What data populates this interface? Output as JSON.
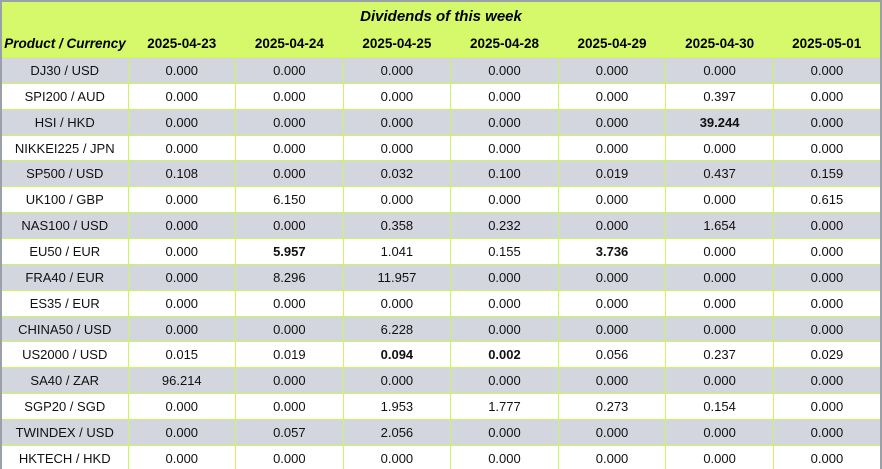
{
  "chart_data": {
    "type": "table",
    "title": "Dividends of this week",
    "columns": [
      "Product / Currency",
      "2025-04-23",
      "2025-04-24",
      "2025-04-25",
      "2025-04-28",
      "2025-04-29",
      "2025-04-30",
      "2025-05-01"
    ],
    "rows": [
      {
        "product": "DJ30 / USD",
        "values": [
          "0.000",
          "0.000",
          "0.000",
          "0.000",
          "0.000",
          "0.000",
          "0.000"
        ],
        "bold": []
      },
      {
        "product": "SPI200 / AUD",
        "values": [
          "0.000",
          "0.000",
          "0.000",
          "0.000",
          "0.000",
          "0.397",
          "0.000"
        ],
        "bold": []
      },
      {
        "product": "HSI / HKD",
        "values": [
          "0.000",
          "0.000",
          "0.000",
          "0.000",
          "0.000",
          "39.244",
          "0.000"
        ],
        "bold": [
          5
        ]
      },
      {
        "product": "NIKKEI225 / JPN",
        "values": [
          "0.000",
          "0.000",
          "0.000",
          "0.000",
          "0.000",
          "0.000",
          "0.000"
        ],
        "bold": []
      },
      {
        "product": "SP500 / USD",
        "values": [
          "0.108",
          "0.000",
          "0.032",
          "0.100",
          "0.019",
          "0.437",
          "0.159"
        ],
        "bold": []
      },
      {
        "product": "UK100 / GBP",
        "values": [
          "0.000",
          "6.150",
          "0.000",
          "0.000",
          "0.000",
          "0.000",
          "0.615"
        ],
        "bold": []
      },
      {
        "product": "NAS100 / USD",
        "values": [
          "0.000",
          "0.000",
          "0.358",
          "0.232",
          "0.000",
          "1.654",
          "0.000"
        ],
        "bold": []
      },
      {
        "product": "EU50 / EUR",
        "values": [
          "0.000",
          "5.957",
          "1.041",
          "0.155",
          "3.736",
          "0.000",
          "0.000"
        ],
        "bold": [
          1,
          4
        ]
      },
      {
        "product": "FRA40 / EUR",
        "values": [
          "0.000",
          "8.296",
          "11.957",
          "0.000",
          "0.000",
          "0.000",
          "0.000"
        ],
        "bold": []
      },
      {
        "product": "ES35 / EUR",
        "values": [
          "0.000",
          "0.000",
          "0.000",
          "0.000",
          "0.000",
          "0.000",
          "0.000"
        ],
        "bold": []
      },
      {
        "product": "CHINA50 / USD",
        "values": [
          "0.000",
          "0.000",
          "6.228",
          "0.000",
          "0.000",
          "0.000",
          "0.000"
        ],
        "bold": []
      },
      {
        "product": "US2000 / USD",
        "values": [
          "0.015",
          "0.019",
          "0.094",
          "0.002",
          "0.056",
          "0.237",
          "0.029"
        ],
        "bold": [
          2,
          3
        ]
      },
      {
        "product": "SA40 / ZAR",
        "values": [
          "96.214",
          "0.000",
          "0.000",
          "0.000",
          "0.000",
          "0.000",
          "0.000"
        ],
        "bold": []
      },
      {
        "product": "SGP20 / SGD",
        "values": [
          "0.000",
          "0.000",
          "1.953",
          "1.777",
          "0.273",
          "0.154",
          "0.000"
        ],
        "bold": []
      },
      {
        "product": "TWINDEX / USD",
        "values": [
          "0.000",
          "0.057",
          "2.056",
          "0.000",
          "0.000",
          "0.000",
          "0.000"
        ],
        "bold": []
      },
      {
        "product": "HKTECH / HKD",
        "values": [
          "0.000",
          "0.000",
          "0.000",
          "0.000",
          "0.000",
          "0.000",
          "0.000"
        ],
        "bold": []
      }
    ],
    "layout": {
      "striped_rows": true,
      "first_data_row_shaded": true
    },
    "colors": {
      "header_background": "#d5f96b",
      "gridline": "#cdf55d",
      "shaded_row": "#d3d6de",
      "plain_row": "#ffffff",
      "outer_border": "#9aa0a8",
      "text": "#000000"
    }
  }
}
